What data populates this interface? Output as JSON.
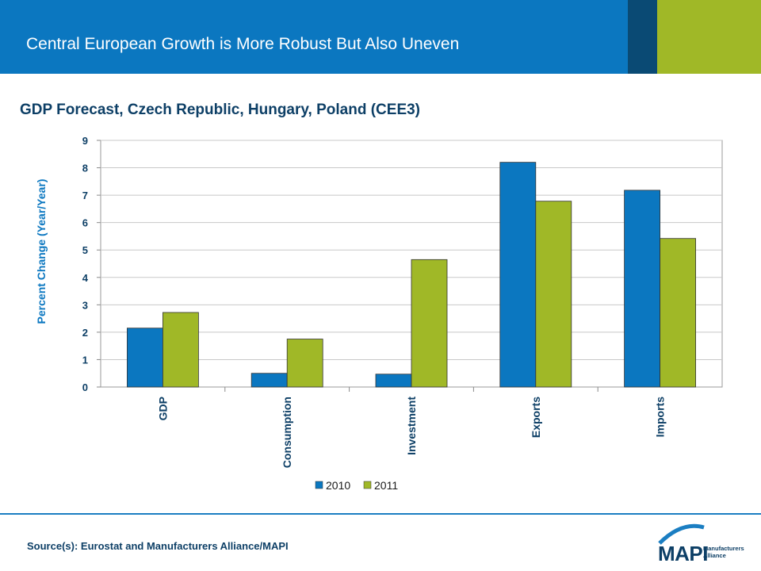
{
  "header": {
    "title": "Central European Growth is More Robust But Also Uneven"
  },
  "subtitle": "GDP Forecast, Czech Republic, Hungary, Poland (CEE3)",
  "footer": {
    "source": "Source(s): Eurostat and Manufacturers Alliance/MAPI",
    "logo_word": "MAPI",
    "logo_line1": "Manufacturers",
    "logo_line2": "Alliance"
  },
  "colors": {
    "banner": "#0b77c0",
    "banner_dark": "#0a4a74",
    "banner_green": "#a0b827",
    "text_dark": "#0d3f66",
    "series_2010": "#0b77c0",
    "series_2011": "#a0b827"
  },
  "chart_data": {
    "type": "bar",
    "title": "",
    "xlabel": "",
    "ylabel": "Percent Change (Year/Year)",
    "ylim": [
      0,
      9
    ],
    "yticks": [
      "0",
      "1",
      "2",
      "3",
      "4",
      "5",
      "6",
      "7",
      "8",
      "9"
    ],
    "grid": true,
    "legend_position": "bottom",
    "categories": [
      "GDP",
      "Consumption",
      "Investment",
      "Exports",
      "Imports"
    ],
    "series": [
      {
        "name": "2010",
        "color": "#0b77c0",
        "values": [
          2.15,
          0.5,
          0.47,
          8.2,
          7.18
        ]
      },
      {
        "name": "2011",
        "color": "#a0b827",
        "values": [
          2.72,
          1.75,
          4.65,
          6.78,
          5.42
        ]
      }
    ]
  }
}
